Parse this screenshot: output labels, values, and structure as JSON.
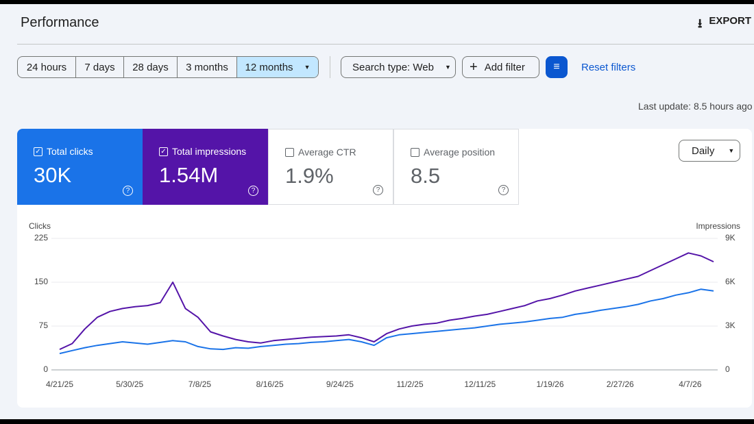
{
  "header": {
    "title": "Performance",
    "export": "EXPORT"
  },
  "filters": {
    "ranges": [
      "24 hours",
      "7 days",
      "28 days",
      "3 months",
      "12 months"
    ],
    "search_type": "Search type: Web",
    "add_filter": "Add filter",
    "reset": "Reset filters",
    "last_update": "Last update: 8.5 hours ago"
  },
  "metrics": [
    {
      "value": "30K"
    },
    {
      "value": "1.54M"
    },
    {
      "label": "Average CTR",
      "value": "1.9%"
    },
    {
      "label": "Average position",
      "value": "8.5"
    }
  ],
  "granularity": "Daily",
  "chart_data": {
    "type": "line",
    "y_label": "Clicks",
    "y2_label": "Impressions",
    "grid": true,
    "x": [
      "4/21/25",
      "4/28/25",
      "5/5/25",
      "5/12/25",
      "5/19/25",
      "5/26/25",
      "6/2/25",
      "6/9/25",
      "6/16/25",
      "6/23/25",
      "6/30/25",
      "7/7/25",
      "7/14/25",
      "7/21/25",
      "7/28/25",
      "8/4/25",
      "8/11/25",
      "8/18/25",
      "8/25/25",
      "9/1/25",
      "9/8/25",
      "9/15/25",
      "9/22/25",
      "9/29/25",
      "10/6/25",
      "10/13/25",
      "10/20/25",
      "10/27/25",
      "11/3/25",
      "11/10/25",
      "11/17/25",
      "11/24/25",
      "12/1/25",
      "12/8/25",
      "12/15/25",
      "12/22/25",
      "12/29/25",
      "1/5/26",
      "1/12/26",
      "1/19/26",
      "1/26/26",
      "2/2/26",
      "2/9/26",
      "2/16/26",
      "2/23/26",
      "3/2/26",
      "3/9/26",
      "3/16/26",
      "3/23/26",
      "3/30/26",
      "4/6/26",
      "4/13/26",
      "4/20/26"
    ],
    "xlim": [
      "4/21/25",
      "4/20/26"
    ],
    "xticks": [
      "4/21/25",
      "5/30/25",
      "7/8/25",
      "8/16/25",
      "9/24/25",
      "11/2/25",
      "12/11/25",
      "1/19/26",
      "2/27/26",
      "4/7/26"
    ],
    "ylim": [
      0,
      225
    ],
    "yticks": [
      0,
      75,
      150,
      225
    ],
    "y2lim": [
      0,
      9000
    ],
    "y2ticks": [
      0,
      {
        "value": 3000,
        "label": "3K"
      },
      {
        "value": 6000,
        "label": "6K"
      },
      {
        "value": 9000,
        "label": "9K"
      }
    ],
    "series": [
      {
        "name": "Total clicks",
        "color": "#1a73e8",
        "values": [
          28,
          33,
          38,
          42,
          45,
          48,
          46,
          44,
          47,
          50,
          48,
          40,
          36,
          35,
          38,
          37,
          40,
          42,
          44,
          45,
          47,
          48,
          50,
          52,
          48,
          42,
          55,
          60,
          62,
          64,
          66,
          68,
          70,
          72,
          75,
          78,
          80,
          82,
          85,
          88,
          90,
          95,
          98,
          102,
          105,
          108,
          112,
          118,
          122,
          128,
          132,
          138,
          135
        ]
      },
      {
        "name": "Total impressions",
        "color": "#5414a8",
        "axis": "y2",
        "values": [
          1400,
          1800,
          2800,
          3600,
          4000,
          4200,
          4320,
          4400,
          4600,
          6000,
          4200,
          3600,
          2600,
          2320,
          2080,
          1920,
          1840,
          2000,
          2080,
          2160,
          2240,
          2280,
          2320,
          2400,
          2200,
          1920,
          2480,
          2800,
          3000,
          3120,
          3200,
          3400,
          3520,
          3680,
          3800,
          4000,
          4200,
          4400,
          4720,
          4880,
          5120,
          5400,
          5600,
          5800,
          6000,
          6200,
          6400,
          6800,
          7200,
          7600,
          8000,
          7800,
          7400
        ]
      }
    ]
  }
}
